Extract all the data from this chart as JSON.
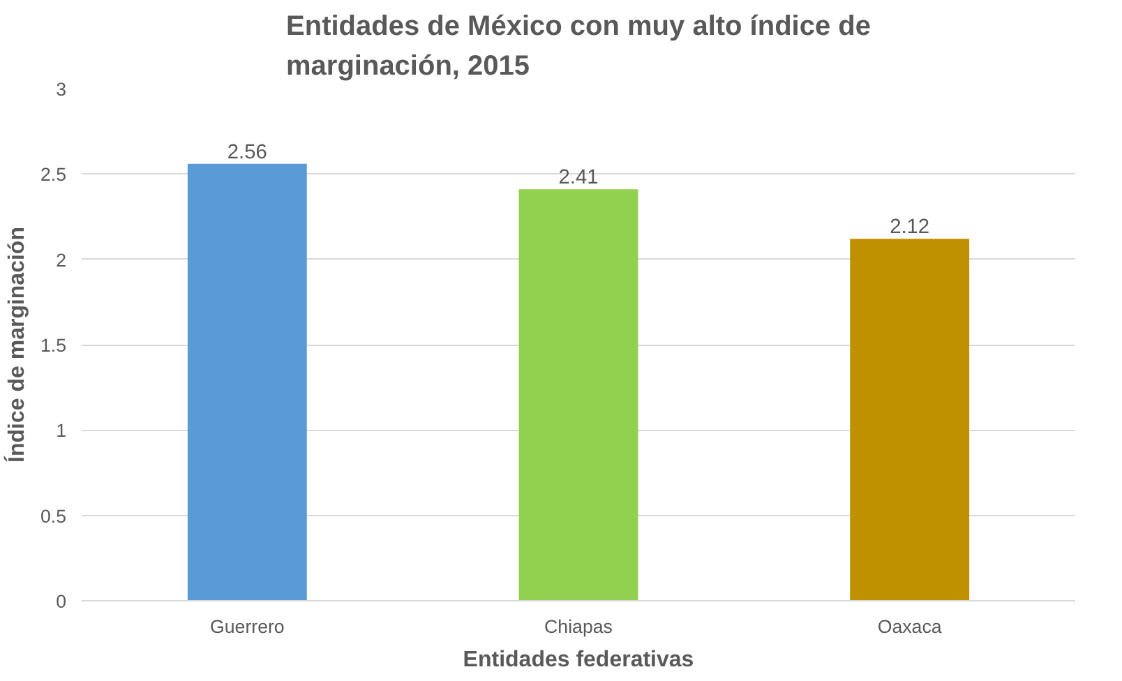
{
  "chart_data": {
    "type": "bar",
    "title": "Entidades de México con muy alto índice de marginación, 2015",
    "xlabel": "Entidades federativas",
    "ylabel": "Índice de marginación",
    "categories": [
      "Guerrero",
      "Chiapas",
      "Oaxaca"
    ],
    "values": [
      2.56,
      2.41,
      2.12
    ],
    "colors": [
      "#5b9bd5",
      "#92d050",
      "#bf9000"
    ],
    "ylim": [
      0,
      3
    ],
    "yticks": [
      0,
      0.5,
      1,
      1.5,
      2,
      2.5,
      3
    ],
    "grid": "y",
    "data_labels": true
  }
}
